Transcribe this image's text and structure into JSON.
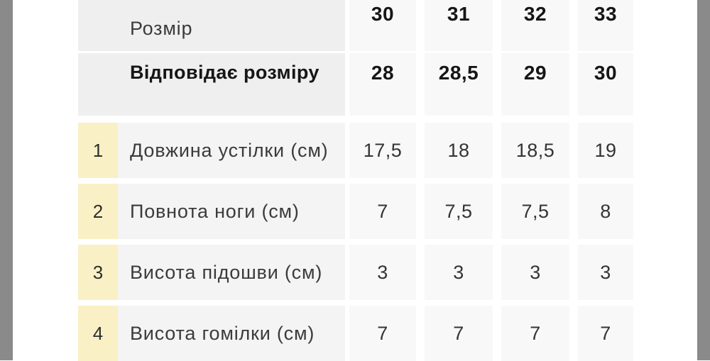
{
  "colors": {
    "edge_bar": "#8a8a8a",
    "header_label_bg": "#efefef",
    "cell_bg": "#f8f8f8",
    "body_label_bg": "#f4f4f4",
    "num_col_bg": "#faf0c6",
    "text_regular": "#3b3b3b",
    "text_bold": "#161616"
  },
  "table": {
    "header": {
      "size_label": "Розмір",
      "corresponds_label": "Відповідає розміру",
      "sizes": [
        "30",
        "31",
        "32",
        "33"
      ],
      "corresponding_sizes": [
        "28",
        "28,5",
        "29",
        "30"
      ]
    },
    "rows": [
      {
        "num": "1",
        "label": "Довжина устілки (см)",
        "values": [
          "17,5",
          "18",
          "18,5",
          "19"
        ]
      },
      {
        "num": "2",
        "label": "Повнота ноги (см)",
        "values": [
          "7",
          "7,5",
          "7,5",
          "8"
        ]
      },
      {
        "num": "3",
        "label": "Висота підошви (см)",
        "values": [
          "3",
          "3",
          "3",
          "3"
        ]
      },
      {
        "num": "4",
        "label": "Висота гомілки (см)",
        "values": [
          "7",
          "7",
          "7",
          "7"
        ]
      }
    ]
  }
}
